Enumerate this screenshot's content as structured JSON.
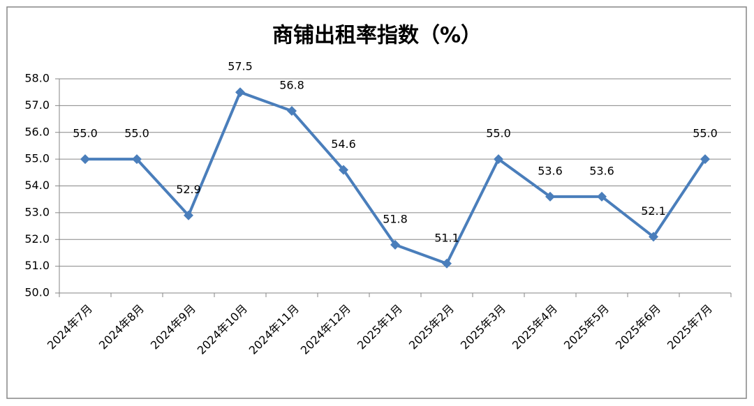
{
  "chart_data": {
    "type": "line",
    "title": "商铺出租率指数（%）",
    "categories": [
      "2024年7月",
      "2024年8月",
      "2024年9月",
      "2024年10月",
      "2024年11月",
      "2024年12月",
      "2025年1月",
      "2025年2月",
      "2025年3月",
      "2025年4月",
      "2025年5月",
      "2025年6月",
      "2025年7月"
    ],
    "values": [
      55.0,
      55.0,
      52.9,
      57.5,
      56.8,
      54.6,
      51.8,
      51.1,
      55.0,
      53.6,
      53.6,
      52.1,
      55.0
    ],
    "value_labels": [
      "55.0",
      "55.0",
      "52.9",
      "57.5",
      "56.8",
      "54.6",
      "51.8",
      "51.1",
      "55.0",
      "53.6",
      "53.6",
      "52.1",
      "55.0"
    ],
    "color": "#4a7ebb",
    "ylim": [
      50,
      58
    ],
    "yticks": [
      {
        "value": 50,
        "label": "50.0"
      },
      {
        "value": 51,
        "label": "51.0"
      },
      {
        "value": 52,
        "label": "52.0"
      },
      {
        "value": 53,
        "label": "53.0"
      },
      {
        "value": 54,
        "label": "54.0"
      },
      {
        "value": 55,
        "label": "55.0"
      },
      {
        "value": 56,
        "label": "56.0"
      },
      {
        "value": 57,
        "label": "57.0"
      },
      {
        "value": 58,
        "label": "58.0"
      }
    ],
    "grid": true
  }
}
